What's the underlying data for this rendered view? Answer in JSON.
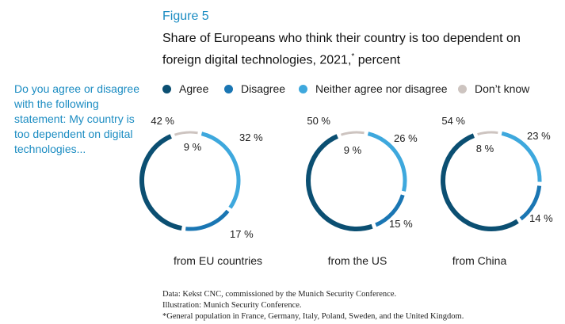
{
  "figure_label": "Figure 5",
  "title": "Share of Europeans who think their country is too dependent on foreign digital technologies, 2021,",
  "title_footnote_marker": "*",
  "title_suffix": " percent",
  "question": "Do you agree or disagree with the following statement: My country is too dependent on digital technologies...",
  "legend": [
    {
      "label": "Agree",
      "color": "#0b4f72"
    },
    {
      "label": "Disagree",
      "color": "#1a76b3"
    },
    {
      "label": "Neither agree nor disagree",
      "color": "#3ea8dd"
    },
    {
      "label": "Don’t know",
      "color": "#cdc4c0"
    }
  ],
  "chart_data": [
    {
      "type": "pie",
      "title": "from EU countries",
      "categories": [
        "Agree",
        "Disagree",
        "Neither agree nor disagree",
        "Don’t know"
      ],
      "values": [
        42,
        17,
        32,
        9
      ],
      "labels": [
        "42 %",
        "17 %",
        "32 %",
        "9 %"
      ]
    },
    {
      "type": "pie",
      "title": "from the US",
      "categories": [
        "Agree",
        "Disagree",
        "Neither agree nor disagree",
        "Don’t know"
      ],
      "values": [
        50,
        15,
        26,
        9
      ],
      "labels": [
        "50 %",
        "15 %",
        "26 %",
        "9 %"
      ]
    },
    {
      "type": "pie",
      "title": "from China",
      "categories": [
        "Agree",
        "Disagree",
        "Neither agree nor disagree",
        "Don’t know"
      ],
      "values": [
        54,
        14,
        23,
        8
      ],
      "labels": [
        "54 %",
        "14 %",
        "23 %",
        "8 %"
      ]
    }
  ],
  "source": [
    "Data: Kekst CNC, commissioned by the Munich Security Conference.",
    "Illustration: Munich Security Conference.",
    "*General population in France, Germany, Italy, Poland, Sweden, and the United Kingdom."
  ]
}
